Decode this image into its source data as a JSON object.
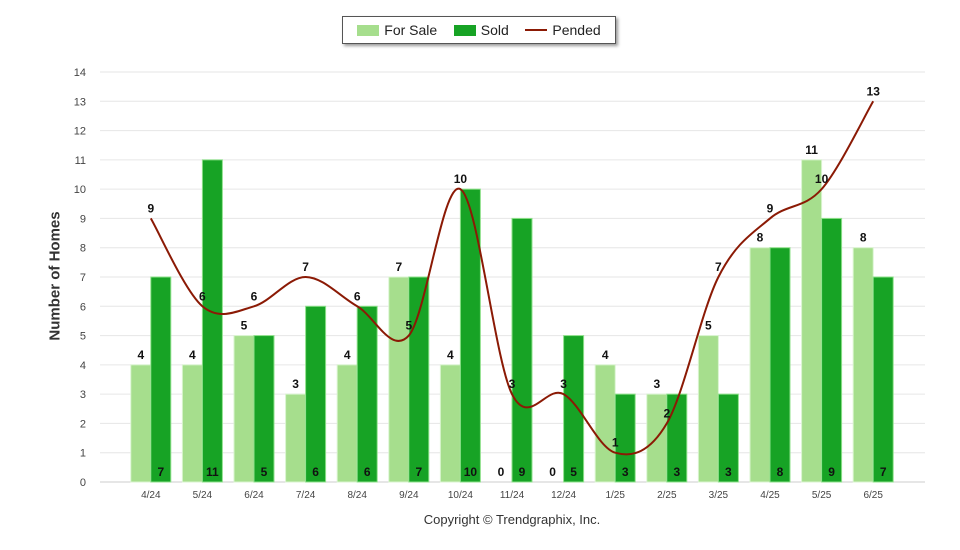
{
  "chart_data": {
    "type": "bar",
    "ylabel": "Number of Homes",
    "ylim": [
      0,
      14
    ],
    "yticks": [
      0,
      1,
      2,
      3,
      4,
      5,
      6,
      7,
      8,
      9,
      10,
      11,
      12,
      13,
      14
    ],
    "categories": [
      "4/24",
      "5/24",
      "6/24",
      "7/24",
      "8/24",
      "9/24",
      "10/24",
      "11/24",
      "12/24",
      "1/25",
      "2/25",
      "3/25",
      "4/25",
      "5/25",
      "6/25"
    ],
    "series": [
      {
        "name": "For Sale",
        "kind": "bar",
        "color": "#a6de8d",
        "values": [
          4,
          4,
          5,
          3,
          4,
          7,
          4,
          0,
          0,
          4,
          3,
          5,
          8,
          11,
          8
        ]
      },
      {
        "name": "Sold",
        "kind": "bar",
        "color": "#17a325",
        "values": [
          7,
          11,
          5,
          6,
          6,
          7,
          10,
          9,
          5,
          3,
          3,
          3,
          8,
          9,
          7
        ]
      },
      {
        "name": "Pended",
        "kind": "line",
        "color": "#8b1a05",
        "values": [
          9,
          6,
          6,
          7,
          6,
          5,
          10,
          3,
          3,
          1,
          2,
          7,
          9,
          10,
          13
        ]
      }
    ],
    "legend_position": "top-center",
    "grid": true
  },
  "legend": {
    "for_sale": "For Sale",
    "sold": "Sold",
    "pended": "Pended"
  },
  "colors": {
    "for_sale": "#a6de8d",
    "sold": "#17a325",
    "pended": "#8b1a05"
  },
  "footer": {
    "copyright": "Copyright © Trendgraphix, Inc."
  }
}
